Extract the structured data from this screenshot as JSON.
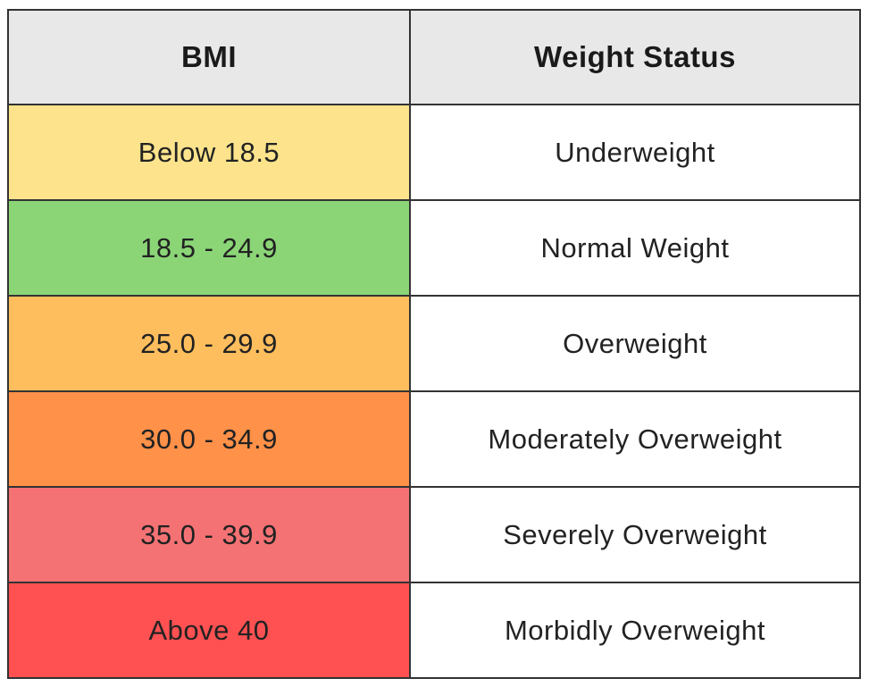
{
  "table": {
    "header": [
      "BMI",
      "Weight Status"
    ],
    "rows": [
      [
        "Below 18.5",
        "Underweight"
      ],
      [
        "18.5 - 24.9",
        "Normal Weight"
      ],
      [
        "25.0 - 29.9",
        "Overweight"
      ],
      [
        "30.0 - 34.9",
        "Moderately Overweight"
      ],
      [
        "35.0 - 39.9",
        "Severely Overweight"
      ],
      [
        "Above 40",
        "Morbidly Overweight"
      ]
    ]
  }
}
